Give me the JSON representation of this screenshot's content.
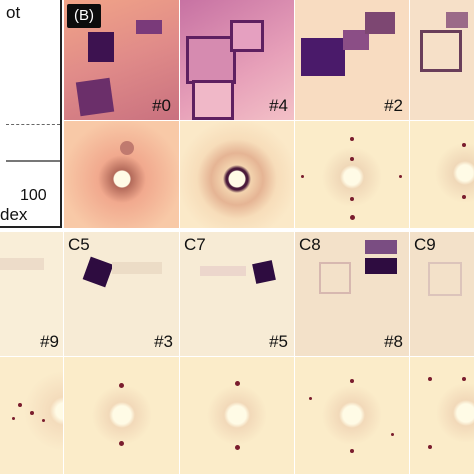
{
  "panel_a": {
    "legend_text": "ot",
    "x_tick_100": "100",
    "x_label_fragment": "dex"
  },
  "panel_b": {
    "badge": "(B)",
    "row1_labels": [
      "#0",
      "#4",
      "#2",
      ""
    ],
    "row3_cell_labels": [
      "",
      "C5",
      "C7",
      "C8",
      "C9"
    ],
    "row3_index_labels": [
      "#9",
      "#3",
      "#5",
      "#8",
      ""
    ]
  },
  "colors": {
    "background": "#fff3d8",
    "tile_background": "#f9e8c2",
    "dark_crystal": "#3d0f55",
    "spot": "#7a1d2e"
  }
}
